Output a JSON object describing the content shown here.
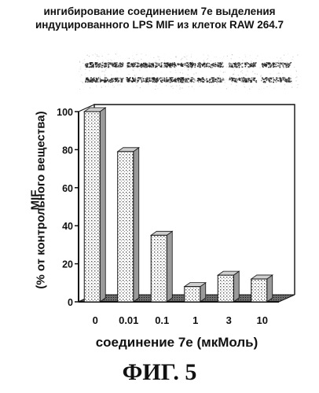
{
  "header": {
    "title_line1": "ингибирование соединением 7e выделения",
    "title_line2": "индуцированного LPS MIF из клеток RAW 264.7"
  },
  "figure_label": "ФИГ. 5",
  "chart_data": {
    "type": "bar",
    "categories": [
      "0",
      "0.01",
      "0.1",
      "1",
      "3",
      "10"
    ],
    "values": [
      100,
      79,
      35,
      8,
      14,
      12
    ],
    "title": "ингибирование соединением 7e выделения индуцированного LPS MIF из клеток RAW 264.7",
    "xlabel": "соединение 7e (мкМоль)",
    "ylabel_line1": "MIF",
    "ylabel_line2": "(% от контрольного вещества)",
    "ylim": [
      0,
      100
    ],
    "yticks": [
      0,
      20,
      40,
      60,
      80,
      100
    ],
    "grid": false,
    "style": "3d"
  }
}
